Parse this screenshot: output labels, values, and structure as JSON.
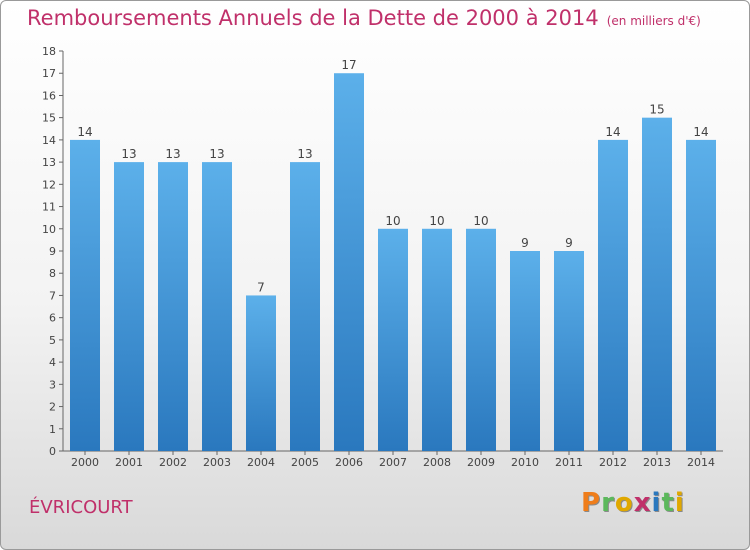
{
  "header": {
    "title": "Remboursements Annuels de la Dette de 2000 à 2014",
    "unit": "(en milliers d'€)"
  },
  "footer": {
    "commune": "ÉVRICOURT",
    "logo": [
      "P",
      "r",
      "o",
      "x",
      "i",
      "t",
      "i"
    ]
  },
  "colors": {
    "title": "#c0306a",
    "bar_top": "#5cb0ea",
    "bar_bottom": "#2a78be",
    "logo": [
      "#ef7d1a",
      "#5cb85c",
      "#e0a800",
      "#c0306a",
      "#2a78be",
      "#5cb85c",
      "#e0a800"
    ]
  },
  "chart_data": {
    "type": "bar",
    "title": "Remboursements Annuels de la Dette de 2000 à 2014",
    "subtitle": "(en milliers d'€)",
    "categories": [
      "2000",
      "2001",
      "2002",
      "2003",
      "2004",
      "2005",
      "2006",
      "2007",
      "2008",
      "2009",
      "2010",
      "2011",
      "2012",
      "2013",
      "2014"
    ],
    "values": [
      14,
      13,
      13,
      13,
      7,
      13,
      17,
      10,
      10,
      10,
      9,
      9,
      14,
      15,
      14
    ],
    "ylim": [
      0,
      18
    ],
    "yticks": [
      0,
      1,
      2,
      3,
      4,
      5,
      6,
      7,
      8,
      9,
      10,
      11,
      12,
      13,
      14,
      15,
      16,
      17,
      18
    ],
    "grid": false,
    "legend": "none"
  }
}
